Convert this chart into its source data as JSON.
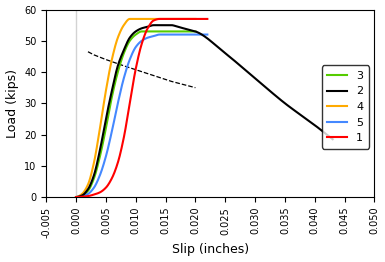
{
  "title": "",
  "xlabel": "Slip (inches)",
  "ylabel": "Load (kips)",
  "xlim": [
    -0.005,
    0.05
  ],
  "ylim": [
    0,
    60
  ],
  "xticks": [
    -0.005,
    0.0,
    0.005,
    0.01,
    0.015,
    0.02,
    0.025,
    0.03,
    0.035,
    0.04,
    0.045,
    0.05
  ],
  "yticks": [
    0,
    10,
    20,
    30,
    40,
    50,
    60
  ],
  "vline_x": 0.0,
  "specimens": [
    {
      "label": "3",
      "color": "#55cc00",
      "pts_x": [
        0.0,
        0.001,
        0.002,
        0.003,
        0.004,
        0.005,
        0.006,
        0.007,
        0.008,
        0.009,
        0.01,
        0.011,
        0.012,
        0.013,
        0.014,
        0.015,
        0.016,
        0.017,
        0.018,
        0.019,
        0.02
      ],
      "pts_y": [
        0.0,
        0.5,
        2.0,
        6.0,
        13.0,
        22.0,
        32.0,
        40.0,
        46.0,
        50.0,
        52.0,
        53.0,
        53.0,
        53.0,
        53.0,
        53.0,
        53.0,
        53.0,
        53.0,
        53.0,
        53.0
      ]
    },
    {
      "label": "2",
      "color": "#000000",
      "pts_x": [
        0.0,
        0.001,
        0.002,
        0.003,
        0.004,
        0.005,
        0.006,
        0.007,
        0.008,
        0.009,
        0.01,
        0.011,
        0.012,
        0.013,
        0.014,
        0.015,
        0.016,
        0.017,
        0.018,
        0.019,
        0.02,
        0.025,
        0.03,
        0.035,
        0.04,
        0.043
      ],
      "pts_y": [
        0.0,
        0.5,
        2.5,
        7.0,
        15.0,
        25.0,
        34.0,
        42.0,
        47.0,
        51.0,
        53.0,
        54.0,
        54.5,
        55.0,
        55.0,
        55.0,
        55.0,
        54.5,
        54.0,
        53.5,
        53.0,
        46.0,
        38.0,
        30.0,
        23.0,
        18.5
      ]
    },
    {
      "label": "4",
      "color": "#ffaa00",
      "pts_x": [
        0.0,
        0.001,
        0.002,
        0.003,
        0.004,
        0.005,
        0.006,
        0.007,
        0.008,
        0.009,
        0.01,
        0.011,
        0.012,
        0.013,
        0.014,
        0.015,
        0.016,
        0.017,
        0.018,
        0.019,
        0.02
      ],
      "pts_y": [
        0.0,
        1.0,
        4.0,
        11.0,
        22.0,
        34.0,
        44.0,
        51.0,
        55.0,
        57.0,
        57.0,
        57.0,
        57.0,
        57.0,
        57.0,
        57.0,
        57.0,
        57.0,
        57.0,
        57.0,
        57.0
      ]
    },
    {
      "label": "5",
      "color": "#4488ff",
      "pts_x": [
        0.0,
        0.001,
        0.002,
        0.003,
        0.004,
        0.005,
        0.006,
        0.007,
        0.008,
        0.009,
        0.01,
        0.011,
        0.012,
        0.013,
        0.014,
        0.015,
        0.016,
        0.017,
        0.018,
        0.019,
        0.02,
        0.021,
        0.022
      ],
      "pts_y": [
        0.0,
        0.3,
        1.0,
        3.0,
        7.0,
        13.0,
        21.0,
        30.0,
        38.0,
        44.0,
        48.0,
        50.0,
        51.0,
        51.5,
        52.0,
        52.0,
        52.0,
        52.0,
        52.0,
        52.0,
        52.0,
        52.0,
        52.0
      ]
    },
    {
      "label": "1",
      "color": "#ff0000",
      "pts_x": [
        0.0,
        0.001,
        0.002,
        0.003,
        0.004,
        0.005,
        0.006,
        0.007,
        0.008,
        0.009,
        0.01,
        0.011,
        0.012,
        0.013,
        0.014,
        0.015,
        0.016,
        0.017,
        0.018,
        0.019,
        0.02,
        0.021,
        0.022
      ],
      "pts_y": [
        0.0,
        0.1,
        0.3,
        0.8,
        1.5,
        3.0,
        6.0,
        11.0,
        19.0,
        30.0,
        41.0,
        49.0,
        54.0,
        56.5,
        57.0,
        57.0,
        57.0,
        57.0,
        57.0,
        57.0,
        57.0,
        57.0,
        57.0
      ]
    }
  ],
  "legend_order": [
    "3",
    "2",
    "4",
    "5",
    "1"
  ],
  "dashed_line": {
    "x_pts": [
      0.002,
      0.003,
      0.005,
      0.008,
      0.012,
      0.016,
      0.02
    ],
    "y_pts": [
      46.5,
      45.5,
      44.0,
      42.0,
      39.5,
      37.0,
      35.0
    ]
  },
  "figsize": [
    3.85,
    2.62
  ],
  "dpi": 100
}
